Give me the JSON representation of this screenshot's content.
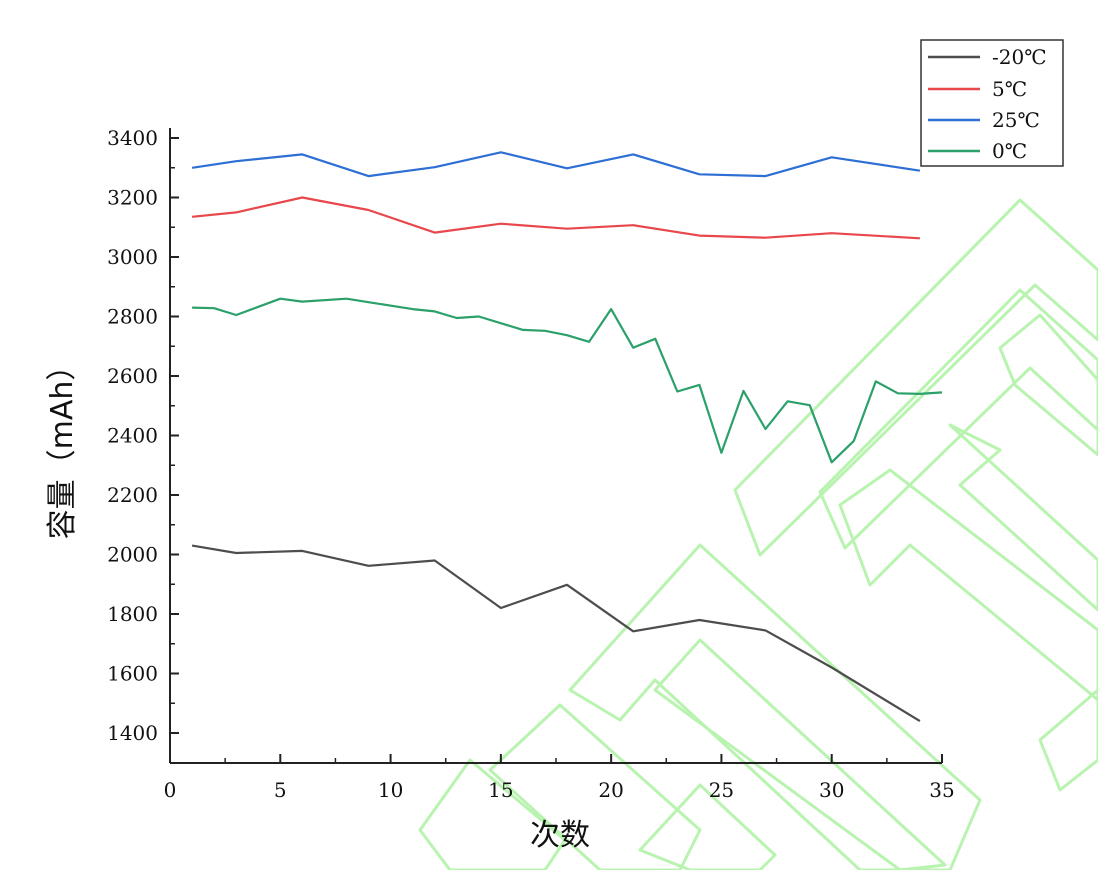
{
  "chart_data": {
    "type": "line",
    "xlabel": "次数",
    "ylabel": "容量（mAh）",
    "xlim": [
      0,
      35
    ],
    "ylim": [
      1300,
      3400
    ],
    "x_ticks": [
      0,
      5,
      10,
      15,
      20,
      25,
      30,
      35
    ],
    "y_ticks": [
      1400,
      1600,
      1800,
      2000,
      2200,
      2400,
      2600,
      2800,
      3000,
      3200,
      3400
    ],
    "grid": false,
    "legend_position": "top-right",
    "series": [
      {
        "name": "-20℃",
        "color": "#4d4d4d",
        "x": [
          1,
          3,
          6,
          9,
          12,
          15,
          18,
          21,
          24,
          27,
          30,
          34
        ],
        "y": [
          2030,
          2005,
          2012,
          1962,
          1980,
          1820,
          1898,
          1742,
          1780,
          1745,
          1620,
          1440
        ]
      },
      {
        "name": "5℃",
        "color": "#e8474c",
        "x": [
          1,
          3,
          6,
          9,
          12,
          15,
          18,
          21,
          24,
          27,
          30,
          34
        ],
        "y": [
          3135,
          3150,
          3200,
          3158,
          3082,
          3112,
          3095,
          3107,
          3072,
          3065,
          3080,
          3063
        ]
      },
      {
        "name": "25℃",
        "color": "#2d6fd4",
        "x": [
          1,
          3,
          6,
          9,
          12,
          15,
          18,
          21,
          24,
          27,
          30,
          34
        ],
        "y": [
          3300,
          3322,
          3345,
          3272,
          3302,
          3352,
          3298,
          3345,
          3278,
          3272,
          3335,
          3290
        ]
      },
      {
        "name": "0℃",
        "color": "#2ba06a",
        "x": [
          1,
          2,
          3,
          5,
          6,
          8,
          9,
          11,
          12,
          13,
          14,
          16,
          17,
          18,
          19,
          20,
          21,
          22,
          23,
          24,
          25,
          26,
          27,
          28,
          29,
          30,
          31,
          32,
          33,
          34,
          35
        ],
        "y": [
          2830,
          2828,
          2805,
          2860,
          2850,
          2860,
          2848,
          2825,
          2817,
          2795,
          2800,
          2755,
          2752,
          2737,
          2715,
          2825,
          2695,
          2725,
          2548,
          2570,
          2342,
          2550,
          2422,
          2515,
          2502,
          2310,
          2382,
          2582,
          2542,
          2540,
          2545
        ]
      }
    ]
  }
}
